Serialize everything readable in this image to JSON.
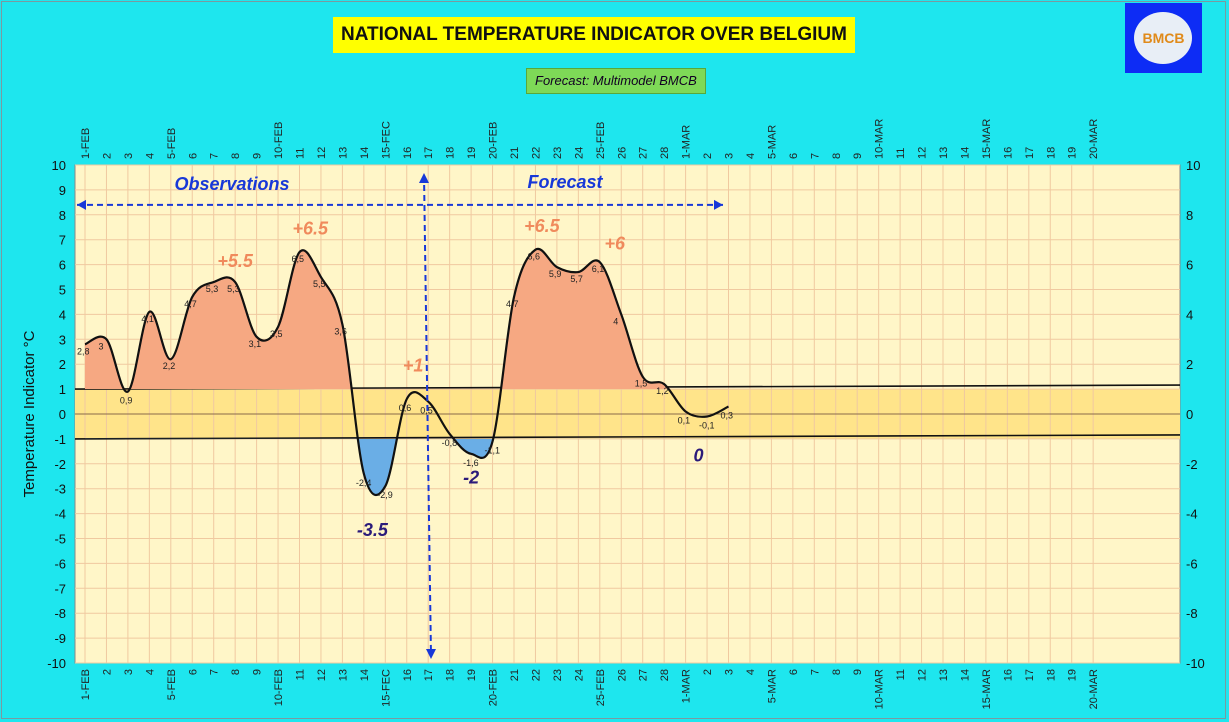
{
  "title": "NATIONAL TEMPERATURE INDICATOR OVER  BELGIUM",
  "subtitle": "Forecast:  Multimodel BMCB",
  "logo_text": "BMCB",
  "chart_data": {
    "type": "line",
    "title": "NATIONAL TEMPERATURE INDICATOR OVER  BELGIUM",
    "ylabel": "Temperature Indicator  °C",
    "ylim": [
      -10,
      10
    ],
    "yticks_left": [
      -10,
      -9,
      -8,
      -7,
      -6,
      -5,
      -4,
      -3,
      -2,
      -1,
      0,
      1,
      2,
      3,
      4,
      5,
      6,
      7,
      8,
      9,
      10
    ],
    "yticks_right": [
      -10,
      -8,
      -6,
      -4,
      -2,
      0,
      2,
      4,
      6,
      8,
      10
    ],
    "x_tick_labels": [
      "1-FEB",
      "2",
      "3",
      "4",
      "5-FEB",
      "6",
      "7",
      "8",
      "9",
      "10-FEB",
      "11",
      "12",
      "13",
      "14",
      "15-FEC",
      "16",
      "17",
      "18",
      "19",
      "20-FEB",
      "21",
      "22",
      "23",
      "24",
      "25-FEB",
      "26",
      "27",
      "28",
      "1-MAR",
      "2",
      "3",
      "4",
      "5-MAR",
      "6",
      "7",
      "8",
      "9",
      "10-MAR",
      "11",
      "12",
      "13",
      "14",
      "15-MAR",
      "16",
      "17",
      "18",
      "19",
      "20-MAR"
    ],
    "x": [
      "1-FEB",
      "2",
      "3",
      "4",
      "5-FEB",
      "6",
      "7",
      "8",
      "9",
      "10-FEB",
      "11",
      "12",
      "13",
      "14",
      "15-FEC",
      "16",
      "17",
      "18",
      "19",
      "20-FEB",
      "21",
      "22",
      "23",
      "24",
      "25-FEB",
      "26",
      "27",
      "28",
      "1-MAR",
      "2",
      "3"
    ],
    "values": [
      2.8,
      3,
      0.9,
      4.1,
      2.2,
      4.7,
      5.3,
      5.3,
      3.1,
      3.5,
      6.5,
      5.5,
      3.6,
      -2.4,
      -2.9,
      0.6,
      0.5,
      -0.8,
      -1.6,
      -1.1,
      4.7,
      6.6,
      5.9,
      5.7,
      6.1,
      4,
      1.5,
      1.2,
      0.1,
      -0.1,
      0.3
    ],
    "data_labels": [
      "2,8",
      "3",
      "0,9",
      "4,1",
      "2,2",
      "4,7",
      "5,3",
      "5,3",
      "3,1",
      "3,5",
      "6,5",
      "5,5",
      "3,6",
      "-2,4",
      "-2,9",
      "0,6",
      "0,5",
      "-0,8",
      "-1,6",
      "-1,1",
      "4,7",
      "6,6",
      "5,9",
      "5,7",
      "6,1",
      "4",
      "1,5",
      "1,2",
      "0,1",
      "-0,1",
      "0,3"
    ],
    "normal_band": [
      -1,
      1
    ],
    "observations_label": "Observations",
    "forecast_label": "Forecast",
    "annotations": [
      {
        "text": "+5.5",
        "kind": "pos",
        "x_index": 7,
        "y": 5.9
      },
      {
        "text": "+6.5",
        "kind": "pos",
        "x_index": 10.5,
        "y": 7.2
      },
      {
        "text": "+1",
        "kind": "pos",
        "x_index": 15.3,
        "y": 1.7
      },
      {
        "text": "-3.5",
        "kind": "neg",
        "x_index": 13.4,
        "y": -4.9
      },
      {
        "text": "-2",
        "kind": "neg",
        "x_index": 18,
        "y": -2.8
      },
      {
        "text": "+6.5",
        "kind": "pos",
        "x_index": 21.3,
        "y": 7.3
      },
      {
        "text": "+6",
        "kind": "pos",
        "x_index": 24.7,
        "y": 6.6
      },
      {
        "text": "0",
        "kind": "neg",
        "x_index": 28.6,
        "y": -1.9
      }
    ],
    "colors": {
      "plot_bg": "#fff6c8",
      "band": "#ffe48a",
      "warm_fill": "#f6a882",
      "cold_fill": "#6aaee6",
      "line": "#111111",
      "grid": "#f0c9a0",
      "arrows": "#1838d8"
    }
  }
}
